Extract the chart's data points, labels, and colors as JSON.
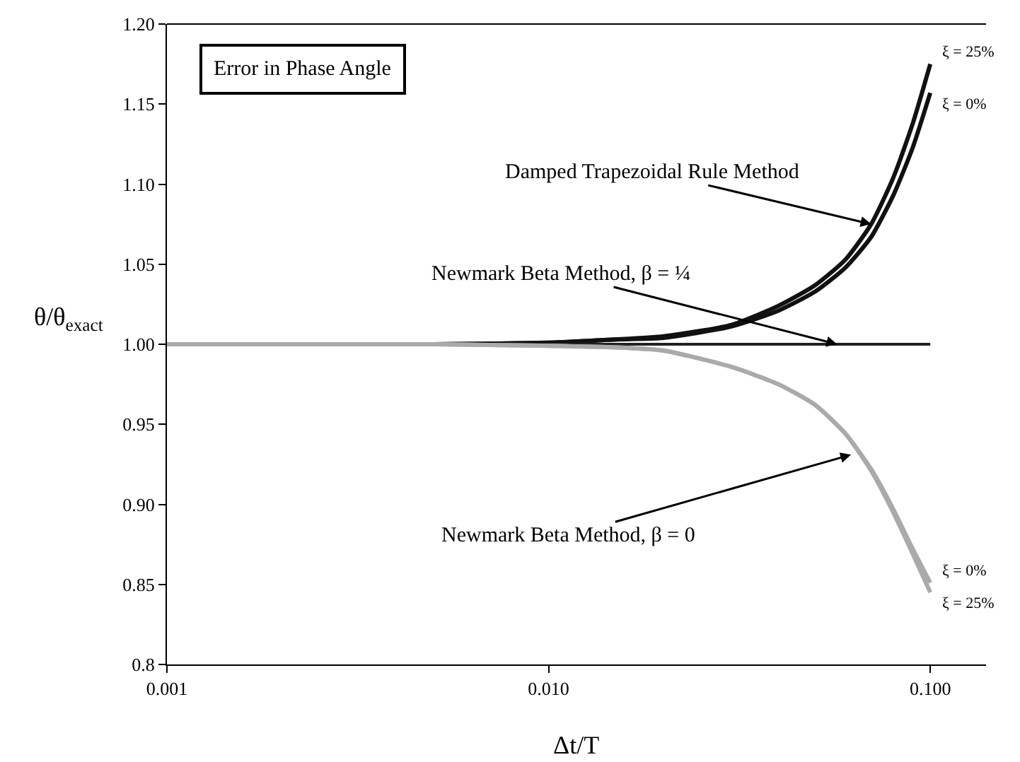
{
  "chart_data": {
    "type": "line",
    "title": "Error in Phase Angle",
    "xlabel": "Δt/T",
    "ylabel": "θ/θ$_{exact}$",
    "x": [
      0.001,
      0.005,
      0.01,
      0.015,
      0.02,
      0.03,
      0.04,
      0.05,
      0.06,
      0.07,
      0.08,
      0.09,
      0.1
    ],
    "series": [
      {
        "name": "ξ = 25%",
        "color": "#111111",
        "values": [
          1.0,
          1.0,
          1.001,
          1.003,
          1.005,
          1.012,
          1.024,
          1.037,
          1.053,
          1.075,
          1.104,
          1.138,
          1.175
        ]
      },
      {
        "name": "ξ = 0%",
        "color": "#111111",
        "values": [
          1.0,
          1.0,
          1.001,
          1.003,
          1.004,
          1.011,
          1.021,
          1.033,
          1.048,
          1.067,
          1.093,
          1.123,
          1.157
        ]
      },
      {
        "color": "#222222",
        "values": [
          1.0,
          1.0,
          1.0,
          1.0,
          1.0,
          1.0,
          1.0,
          1.0,
          1.0,
          1.0,
          1.0,
          1.0,
          1.0
        ]
      },
      {
        "name": "ξ = 0%",
        "color": "#aaaaaa",
        "values": [
          1.0,
          1.0,
          0.999,
          0.998,
          0.996,
          0.986,
          0.975,
          0.962,
          0.944,
          0.922,
          0.897,
          0.872,
          0.851
        ]
      },
      {
        "name": "ξ = 25%",
        "color": "#aaaaaa",
        "values": [
          1.0,
          1.0,
          0.999,
          0.998,
          0.996,
          0.986,
          0.975,
          0.962,
          0.944,
          0.921,
          0.895,
          0.869,
          0.845
        ]
      }
    ],
    "annotations": [
      {
        "text": "Damped Trapezoidal Rule Method",
        "x": 0.07,
        "y": 1.075
      },
      {
        "text": "Newmark Beta Method, β = ¼",
        "x": 0.057,
        "y": 1.0
      },
      {
        "text": "Newmark Beta Method, β = 0",
        "x": 0.062,
        "y": 0.931
      }
    ],
    "log": "x",
    "xlim": [
      0.001,
      0.14
    ],
    "xticks": [
      {
        "value": 0.001,
        "label": "0.001"
      },
      {
        "value": 0.01,
        "label": "0.010"
      },
      {
        "value": 0.1,
        "label": "0.100"
      }
    ],
    "ylim": [
      0.8,
      1.2
    ],
    "yticks": [
      0.8,
      {
        "value": 0.85,
        "label": "0.85"
      },
      {
        "value": 0.9,
        "label": "0.90"
      },
      {
        "value": 0.95,
        "label": "0.95"
      },
      {
        "value": 1.0,
        "label": "1.00"
      },
      {
        "value": 1.05,
        "label": "1.05"
      },
      {
        "value": 1.1,
        "label": "1.10"
      },
      {
        "value": 1.15,
        "label": "1.15"
      },
      {
        "value": 1.2,
        "label": "1.20"
      }
    ],
    "grid": false,
    "legend": false,
    "marker": "none",
    "line_style": "solid"
  }
}
